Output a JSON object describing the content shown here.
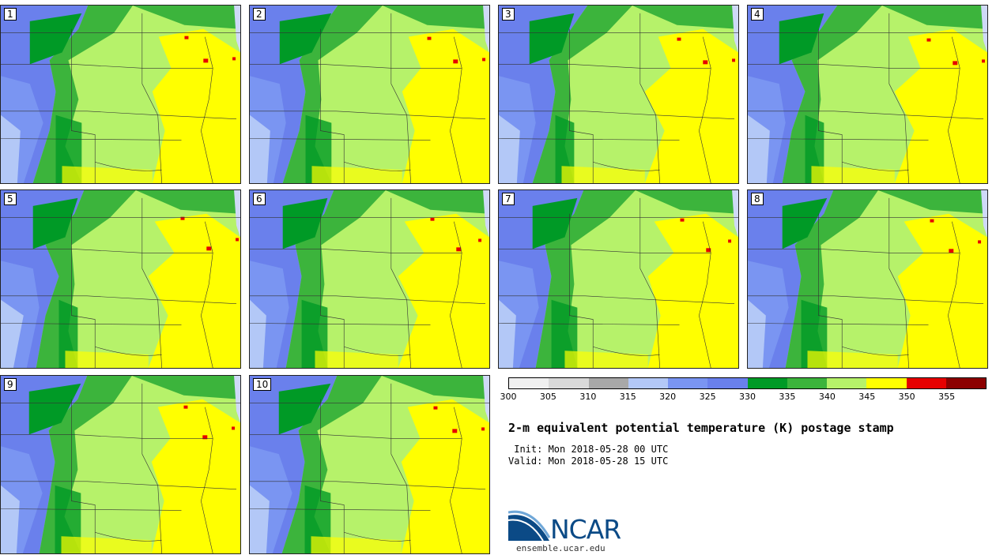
{
  "stamps": [
    {
      "label": "1"
    },
    {
      "label": "2"
    },
    {
      "label": "3"
    },
    {
      "label": "4"
    },
    {
      "label": "5"
    },
    {
      "label": "6"
    },
    {
      "label": "7"
    },
    {
      "label": "8"
    },
    {
      "label": "9"
    },
    {
      "label": "10"
    }
  ],
  "colorbar": {
    "colors": [
      "#f0f0f0",
      "#d9d9d9",
      "#a8a8a8",
      "#b3c8f7",
      "#7a95f2",
      "#6a80ec",
      "#009a26",
      "#3cb43c",
      "#b6f26a",
      "#ffff00",
      "#e60000",
      "#8c0000"
    ],
    "ticks": [
      "300",
      "305",
      "310",
      "315",
      "320",
      "325",
      "330",
      "335",
      "340",
      "345",
      "350",
      "355"
    ]
  },
  "title": "2-m equivalent potential temperature (K) postage stamp",
  "init": " Init: Mon 2018-05-28 00 UTC",
  "valid": "Valid: Mon 2018-05-28 15 UTC",
  "logo_text": "NCAR",
  "site": "ensemble.ucar.edu"
}
